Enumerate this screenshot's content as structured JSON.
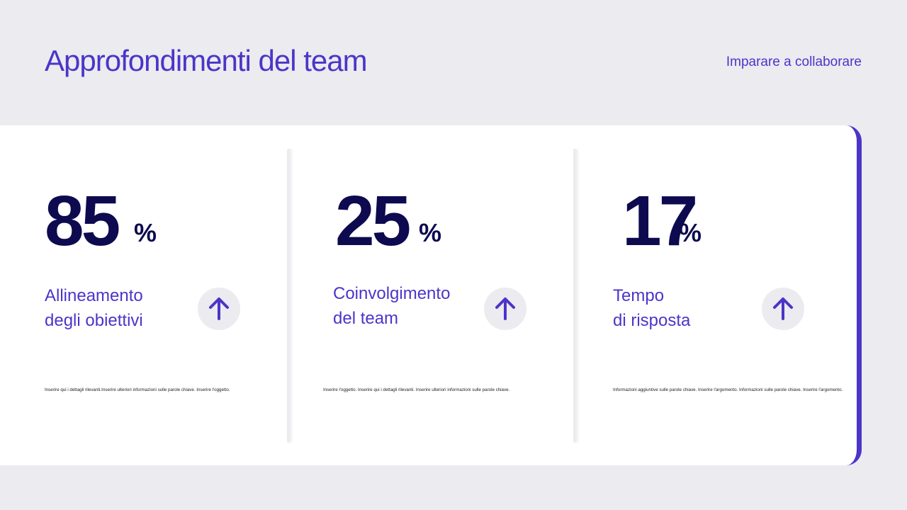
{
  "header": {
    "title": "Approfondimenti del team",
    "subtitle": "Imparare a collaborare"
  },
  "cards": [
    {
      "value": 85,
      "unit": "%",
      "label": [
        "Allineamento",
        "degli obiettivi"
      ],
      "description": "Inserire qui i dettagli rilevanti.Inserire ulteriori informazioni sulle parole chiave. Inserire l'oggetto."
    },
    {
      "value": 25,
      "unit": "%",
      "label": [
        "Coinvolgimento",
        "del team"
      ],
      "description": "Inserire l'oggetto. Inserire qui i dettagli rilevanti. Inserire ulteriori informazioni sulle parole chiave."
    },
    {
      "value": 17,
      "unit": "%",
      "label": [
        "Tempo",
        "di risposta"
      ],
      "description": "Informazioni aggiuntive sulle parole chiave. Inserire l'argomento. Informazioni sulle parole chiave. Inserire l'argomento."
    }
  ]
}
